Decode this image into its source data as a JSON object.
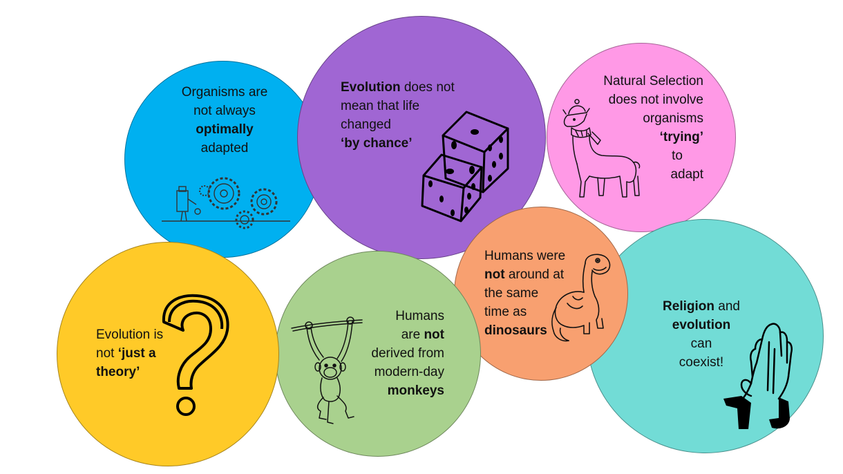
{
  "bubbles": {
    "optimal": {
      "color": "#00b0f0",
      "line1": "Organisms are",
      "line2": "not always",
      "line3_bold": "optimally",
      "line4": "adapted",
      "icon": "gears-and-robot-icon"
    },
    "chance": {
      "color": "#a066d3",
      "line1_bold": "Evolution",
      "line1_rest": " does not",
      "line2": "mean that life",
      "line3": "changed",
      "line4_bold": "‘by chance’",
      "icon": "dice-icon"
    },
    "trying": {
      "color": "#ff99e6",
      "line1": "Natural Selection",
      "line2": "does not involve",
      "line3": "organisms",
      "line4_bold": "‘trying’",
      "line5": "to",
      "line6": "adapt",
      "icon": "llama-icon"
    },
    "theory": {
      "color": "#ffca28",
      "line1": "Evolution is",
      "line2_start": "not ",
      "line2_bold": "‘just a",
      "line3_bold": "theory’",
      "icon": "question-mark-icon"
    },
    "monkeys": {
      "color": "#a9d18e",
      "line1": "Humans",
      "line2_start": "are ",
      "line2_bold": "not",
      "line3": "derived from",
      "line4": "modern-day",
      "line5_bold": "monkeys",
      "icon": "monkey-icon"
    },
    "dinosaurs": {
      "color": "#f8a070",
      "line1": "Humans were",
      "line2_bold": "not",
      "line2_rest": " around at",
      "line3": "the same",
      "line4": "time as",
      "line5_bold": "dinosaurs",
      "icon": "dinosaur-icon"
    },
    "religion": {
      "color": "#72dcd6",
      "line1_bold": "Religion",
      "line1_rest": " and",
      "line2_bold": "evolution",
      "line3": "can",
      "line4": "coexist!",
      "icon": "praying-hands-icon"
    }
  }
}
